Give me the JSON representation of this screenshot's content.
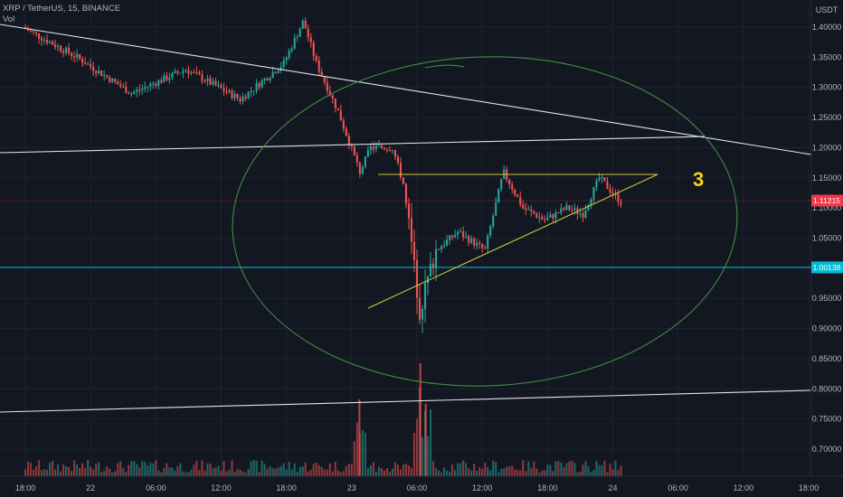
{
  "header": {
    "title": "XRP / TetherUS, 15, BINANCE",
    "indicator": "Vol"
  },
  "axis": {
    "currency": "USDT"
  },
  "annotation": {
    "label": "3"
  },
  "colors": {
    "background": "#131722",
    "up": "#26a69a",
    "down": "#ef5350",
    "trendline": "#e0e3eb",
    "triangle": "#d4c43c",
    "circle": "#3e8e3e",
    "label": "#f5d40f",
    "price_tag": "#f23645",
    "level_tag": "#00bcd4"
  },
  "chart_data": {
    "type": "candlestick",
    "title": "XRP / TetherUS, 15, BINANCE",
    "ylim": [
      0.655,
      1.435
    ],
    "y_ticks": [
      "1.40000",
      "1.35000",
      "1.30000",
      "1.25000",
      "1.20000",
      "1.15000",
      "1.10000",
      "1.05000",
      "1.00000",
      "0.95000",
      "0.90000",
      "0.85000",
      "0.80000",
      "0.75000",
      "0.70000"
    ],
    "y_tick_values": [
      1.4,
      1.35,
      1.3,
      1.25,
      1.2,
      1.15,
      1.1,
      1.05,
      1.0,
      0.95,
      0.9,
      0.85,
      0.8,
      0.75,
      0.7
    ],
    "x_ticks": [
      "18:00",
      "22",
      "06:00",
      "12:00",
      "18:00",
      "23",
      "06:00",
      "12:00",
      "18:00",
      "24",
      "06:00",
      "12:00",
      "18:00"
    ],
    "x_tick_hours": [
      0,
      6,
      12,
      18,
      24,
      30,
      36,
      42,
      48,
      54,
      60,
      66,
      72
    ],
    "x_start": "21 18:00",
    "last_price": "1.11215",
    "last_price_value": 1.11215,
    "horizontal_level": "1.00138",
    "horizontal_level_value": 1.00138,
    "key_points": [
      {
        "hour": 0,
        "price": 1.4
      },
      {
        "hour": 5,
        "price": 1.35
      },
      {
        "hour": 10,
        "price": 1.29
      },
      {
        "hour": 15,
        "price": 1.33
      },
      {
        "hour": 20,
        "price": 1.28
      },
      {
        "hour": 24,
        "price": 1.34
      },
      {
        "hour": 25.8,
        "price": 1.41
      },
      {
        "hour": 27,
        "price": 1.34
      },
      {
        "hour": 29,
        "price": 1.26
      },
      {
        "hour": 31,
        "price": 1.16
      },
      {
        "hour": 32,
        "price": 1.2
      },
      {
        "hour": 34,
        "price": 1.2
      },
      {
        "hour": 35,
        "price": 1.14
      },
      {
        "hour": 36.5,
        "price": 0.93
      },
      {
        "hour": 38,
        "price": 1.03
      },
      {
        "hour": 40,
        "price": 1.06
      },
      {
        "hour": 42.5,
        "price": 1.03
      },
      {
        "hour": 44.2,
        "price": 1.16
      },
      {
        "hour": 46,
        "price": 1.1
      },
      {
        "hour": 48,
        "price": 1.08
      },
      {
        "hour": 50,
        "price": 1.1
      },
      {
        "hour": 51.5,
        "price": 1.09
      },
      {
        "hour": 53,
        "price": 1.15
      },
      {
        "hour": 55,
        "price": 1.11
      }
    ],
    "volume_scale_max": 1.0
  }
}
